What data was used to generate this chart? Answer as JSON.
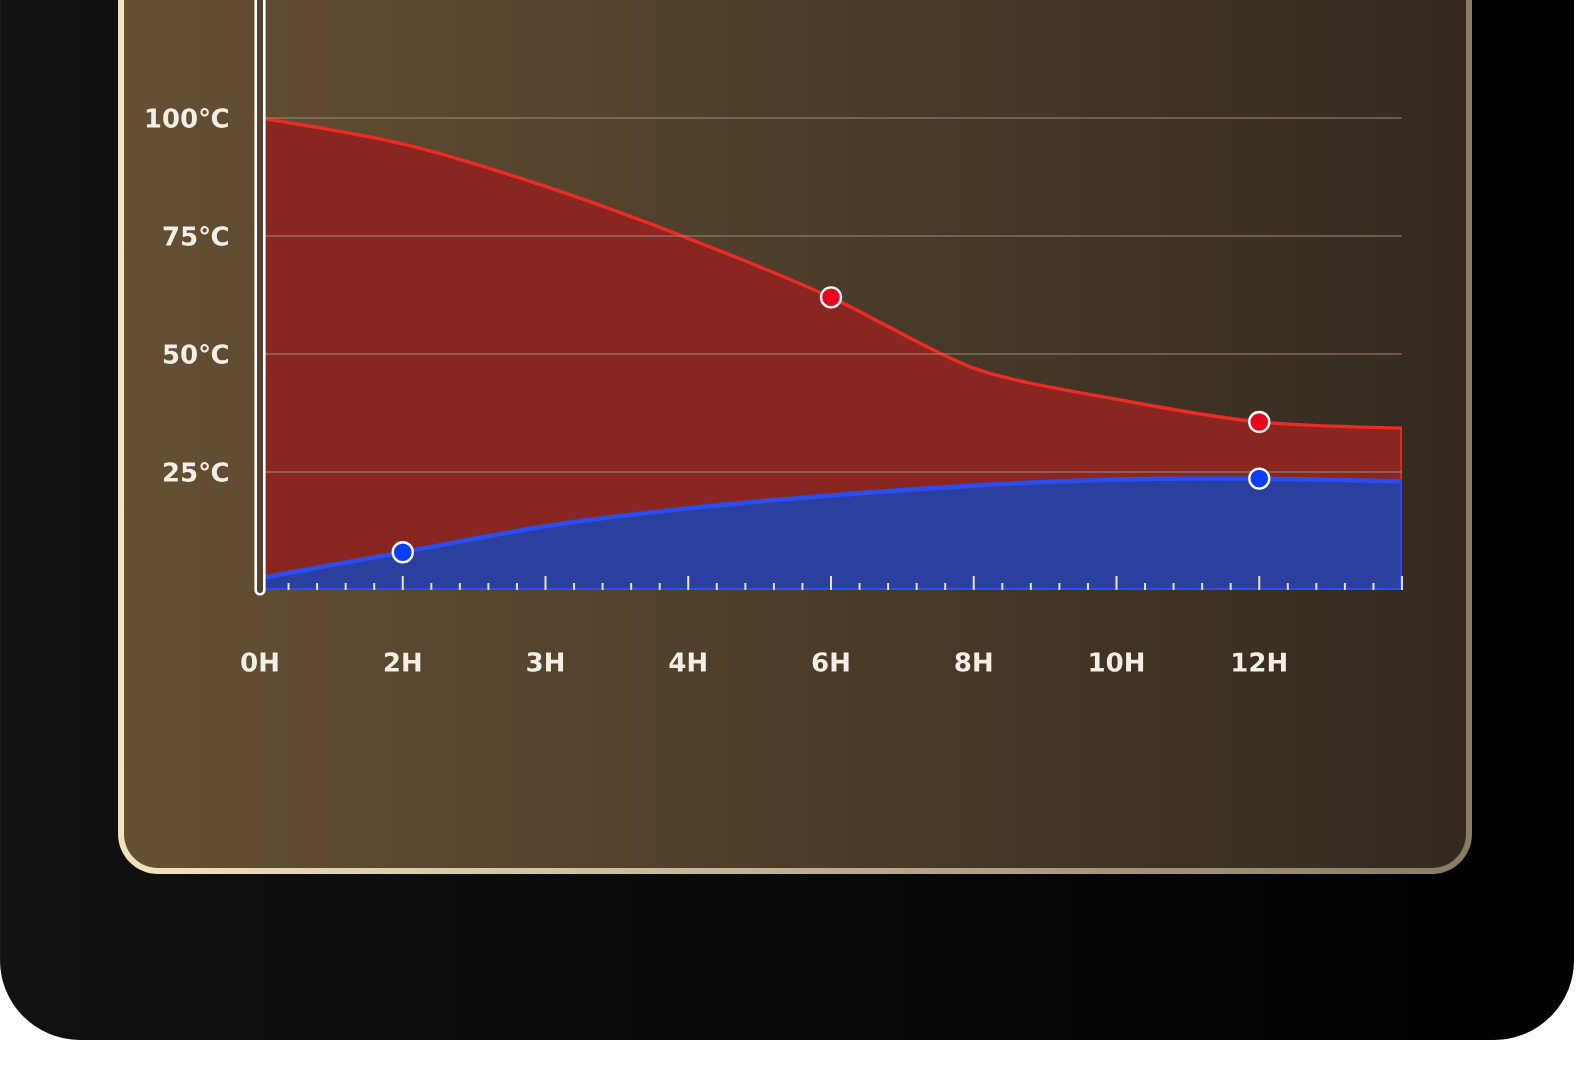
{
  "chart_data": {
    "type": "area",
    "categories": [
      "0H",
      "2H",
      "3H",
      "4H",
      "6H",
      "8H",
      "10H",
      "12H",
      null
    ],
    "ylim": [
      0,
      125
    ],
    "yticks": [
      {
        "value": 25,
        "label": "25℃"
      },
      {
        "value": 50,
        "label": "50℃"
      },
      {
        "value": 75,
        "label": "75℃"
      },
      {
        "value": 100,
        "label": "100℃"
      }
    ],
    "grid": "y",
    "series": [
      {
        "color": "#8a2622",
        "values": [
          100,
          94.5,
          85.5,
          74.5,
          62,
          47,
          40.4,
          35.6,
          34.3
        ]
      },
      {
        "color": "#2a3f9e",
        "values": [
          2.5,
          8,
          13.5,
          17.3,
          20,
          22.1,
          23.4,
          23.6,
          23
        ]
      },
      {
        "type": "scatter",
        "color": "#e8001c",
        "values": [
          null,
          null,
          null,
          null,
          62,
          null,
          null,
          35.6,
          null
        ]
      },
      {
        "type": "scatter",
        "color": "#0b3dff",
        "values": [
          null,
          8,
          null,
          null,
          null,
          null,
          null,
          23.6,
          null
        ]
      }
    ]
  }
}
